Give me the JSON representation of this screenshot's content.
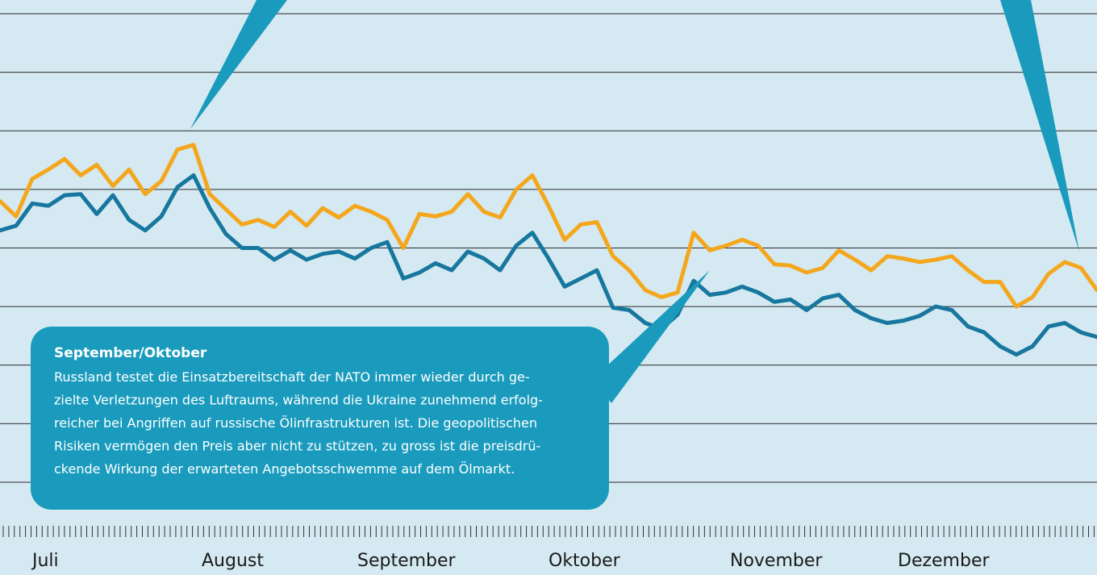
{
  "chart_data": {
    "type": "line",
    "month_labels": [
      "Juli",
      "August",
      "September",
      "Oktober",
      "November",
      "Dezember"
    ],
    "ylim": [
      45,
      85
    ],
    "yticks": [
      45,
      50,
      55,
      60,
      65,
      70,
      75,
      80,
      85
    ],
    "grid": true,
    "series": [
      {
        "color": "#f4a71d",
        "values": [
          69.0,
          67.7,
          70.9,
          71.7,
          72.6,
          71.2,
          72.1,
          70.3,
          71.7,
          69.6,
          70.7,
          73.4,
          73.8,
          69.6,
          68.3,
          67.0,
          67.4,
          66.8,
          68.1,
          66.9,
          68.4,
          67.6,
          68.6,
          68.1,
          67.4,
          65.0,
          67.9,
          67.7,
          68.1,
          69.6,
          68.1,
          67.6,
          70.0,
          71.2,
          68.6,
          65.7,
          67.0,
          67.2,
          64.3,
          63.1,
          61.4,
          60.8,
          61.2,
          66.3,
          64.8,
          65.2,
          65.7,
          65.2,
          63.6,
          63.5,
          62.9,
          63.3,
          64.8,
          64.0,
          63.1,
          64.3,
          64.1,
          63.8,
          64.0,
          64.3,
          63.1,
          62.1,
          62.1,
          60.0,
          60.8,
          62.8,
          63.8,
          63.3,
          61.4
        ]
      },
      {
        "color": "#17779f",
        "values": [
          66.5,
          66.9,
          68.8,
          68.6,
          69.5,
          69.6,
          67.9,
          69.5,
          67.4,
          66.5,
          67.7,
          70.2,
          71.2,
          68.4,
          66.2,
          65.0,
          65.0,
          64.0,
          64.8,
          64.0,
          64.5,
          64.7,
          64.1,
          65.0,
          65.5,
          62.4,
          62.9,
          63.7,
          63.1,
          64.7,
          64.1,
          63.1,
          65.2,
          66.3,
          64.1,
          61.7,
          62.4,
          63.1,
          59.9,
          59.7,
          58.6,
          58.1,
          59.3,
          62.2,
          61.0,
          61.2,
          61.7,
          61.2,
          60.4,
          60.6,
          59.7,
          60.7,
          61.0,
          59.7,
          59.0,
          58.6,
          58.8,
          59.2,
          60.0,
          59.7,
          58.3,
          57.8,
          56.6,
          55.9,
          56.6,
          58.3,
          58.6,
          57.8,
          57.4
        ]
      }
    ],
    "annotation": {
      "title": "September/Oktober",
      "lines": [
        "Russland testet die Einsatzbereitschaft der NATO immer wieder durch ge-",
        "zielte Verletzungen des Luftraums, während die Ukraine zunehmend erfolg-",
        "reicher bei Angriffen auf russische Ölinfrastrukturen ist. Die geopolitischen",
        "Risiken vermögen den Preis aber nicht zu stützen, zu gross ist die preisdrü-",
        "ckende Wirkung der erwarteten Angebotsschwemme auf dem Ölmarkt."
      ]
    }
  }
}
